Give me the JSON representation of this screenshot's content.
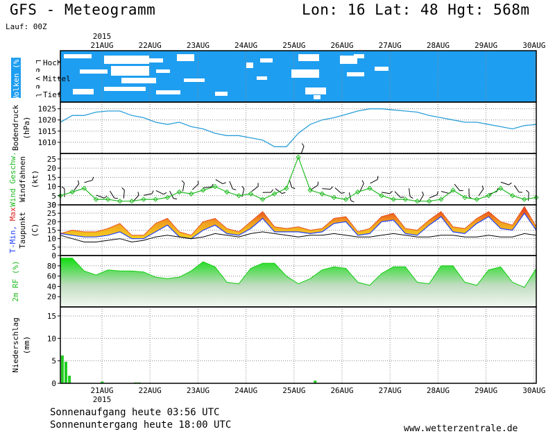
{
  "header": {
    "title": "GFS - Meteogramm",
    "location": "Lon: 16 Lat: 48 Hgt: 568m",
    "run": "Lauf: 00Z"
  },
  "footer": {
    "sunrise": "Sonnenaufgang heute 03:56 UTC",
    "sunset": "Sonnenuntergang heute 18:00 UTC",
    "site": "www.wetterzentrale.de"
  },
  "chart_data": [
    {
      "type": "heatmap",
      "id": "clouds",
      "ylabel": "Wolken (%)",
      "level_caption": "L e v e l",
      "levels": [
        "Hoch",
        "Mittel",
        "Tief"
      ],
      "x_range": [
        0,
        30
      ],
      "colors": {
        "cloud_free": "#ffffff",
        "cloud": "#1e9ef0"
      }
    },
    {
      "type": "line",
      "id": "pressure",
      "ylabel": "Bodendruck",
      "unit": "(hPa)",
      "yticks": [
        1010,
        1015,
        1020,
        1025
      ],
      "ylim": [
        1005,
        1028
      ],
      "color": "#2a9fd8",
      "x": [
        0,
        1,
        2,
        3,
        4,
        5,
        6,
        7,
        8,
        9,
        10,
        11,
        12,
        13,
        14,
        15,
        16,
        17,
        18,
        19,
        20,
        21,
        22,
        23,
        24,
        25,
        26,
        27,
        28,
        29,
        30,
        31,
        32,
        33,
        34,
        35,
        36,
        37,
        38,
        39,
        40
      ],
      "values": [
        1019,
        1022,
        1022,
        1023.5,
        1024,
        1024,
        1022,
        1021,
        1019,
        1018,
        1019,
        1017,
        1016,
        1014,
        1013,
        1013,
        1012,
        1011,
        1008,
        1008,
        1014,
        1018,
        1020,
        1021,
        1022.5,
        1024,
        1025,
        1025,
        1024.5,
        1024,
        1023.5,
        1022,
        1021,
        1020,
        1019,
        1019,
        1018,
        1017,
        1016,
        1017.5,
        1018
      ]
    },
    {
      "type": "line",
      "id": "wind",
      "ylabel": "Wind Geschw.",
      "ylabel2": "Windfahnen",
      "unit": "(kt)",
      "yticks": [
        0,
        5,
        10,
        15,
        20,
        25
      ],
      "ylim": [
        0,
        28
      ],
      "color": "#22bb22",
      "x": [
        0,
        1,
        2,
        3,
        4,
        5,
        6,
        7,
        8,
        9,
        10,
        11,
        12,
        13,
        14,
        15,
        16,
        17,
        18,
        19,
        20,
        21,
        22,
        23,
        24,
        25,
        26,
        27,
        28,
        29,
        30,
        31,
        32,
        33,
        34,
        35,
        36,
        37,
        38,
        39,
        40
      ],
      "values": [
        5,
        7,
        9,
        3,
        3,
        2,
        2,
        3,
        3,
        4,
        7,
        6,
        8,
        10,
        7,
        5,
        6,
        3,
        6,
        9,
        26,
        8,
        6,
        4,
        3,
        7,
        9,
        5,
        3,
        3,
        2,
        2,
        3,
        8,
        4,
        3,
        5,
        9,
        5,
        3,
        4
      ]
    },
    {
      "type": "area",
      "id": "temperature",
      "ylabel": "T-Min, Max",
      "ylabel2": "Taupunkt",
      "unit": "(C)",
      "yticks": [
        0,
        5,
        10,
        15,
        20,
        25,
        30
      ],
      "ylim": [
        0,
        30
      ],
      "colors": {
        "band_low": "#f0c020",
        "band_high": "#e85020",
        "tmin": "#2040ff",
        "dewpoint": "#000000"
      },
      "series": [
        {
          "name": "T-Max",
          "x": [
            0,
            1,
            2,
            3,
            4,
            5,
            6,
            7,
            8,
            9,
            10,
            11,
            12,
            13,
            14,
            15,
            16,
            17,
            18,
            19,
            20,
            21,
            22,
            23,
            24,
            25,
            26,
            27,
            28,
            29,
            30,
            31,
            32,
            33,
            34,
            35,
            36,
            37,
            38,
            39,
            40
          ],
          "values": [
            13,
            15,
            14,
            14,
            16,
            19,
            12,
            12,
            19,
            22,
            14,
            12,
            20,
            22,
            16,
            14,
            20,
            26,
            17,
            16,
            17,
            15,
            16,
            22,
            23,
            14,
            16,
            23,
            25,
            16,
            15,
            21,
            26,
            17,
            16,
            22,
            26,
            20,
            18,
            29,
            17
          ]
        },
        {
          "name": "T-Min",
          "x": [
            0,
            1,
            2,
            3,
            4,
            5,
            6,
            7,
            8,
            9,
            10,
            11,
            12,
            13,
            14,
            15,
            16,
            17,
            18,
            19,
            20,
            21,
            22,
            23,
            24,
            25,
            26,
            27,
            28,
            29,
            30,
            31,
            32,
            33,
            34,
            35,
            36,
            37,
            38,
            39,
            40
          ],
          "values": [
            13,
            12,
            11,
            11,
            12,
            14,
            10,
            10,
            14,
            18,
            11,
            10,
            15,
            18,
            13,
            12,
            16,
            22,
            14,
            14,
            14,
            13,
            14,
            19,
            20,
            12,
            13,
            20,
            21,
            13,
            12,
            18,
            23,
            14,
            13,
            19,
            23,
            16,
            15,
            25,
            15
          ]
        },
        {
          "name": "Taupunkt",
          "x": [
            0,
            1,
            2,
            3,
            4,
            5,
            6,
            7,
            8,
            9,
            10,
            11,
            12,
            13,
            14,
            15,
            16,
            17,
            18,
            19,
            20,
            21,
            22,
            23,
            24,
            25,
            26,
            27,
            28,
            29,
            30,
            31,
            32,
            33,
            34,
            35,
            36,
            37,
            38,
            39,
            40
          ],
          "values": [
            12,
            10,
            8,
            8,
            9,
            10,
            8,
            9,
            11,
            12,
            11,
            10,
            11,
            13,
            12,
            11,
            13,
            14,
            13,
            12,
            11,
            12,
            12,
            13,
            12,
            11,
            11,
            12,
            13,
            12,
            11,
            11,
            12,
            12,
            11,
            11,
            12,
            11,
            11,
            13,
            12
          ]
        }
      ]
    },
    {
      "type": "area",
      "id": "humidity",
      "ylabel": "2m RF (%)",
      "yticks": [
        20,
        40,
        60,
        80
      ],
      "ylim": [
        0,
        100
      ],
      "color": "#22cc22",
      "x": [
        0,
        1,
        2,
        3,
        4,
        5,
        6,
        7,
        8,
        9,
        10,
        11,
        12,
        13,
        14,
        15,
        16,
        17,
        18,
        19,
        20,
        21,
        22,
        23,
        24,
        25,
        26,
        27,
        28,
        29,
        30,
        31,
        32,
        33,
        34,
        35,
        36,
        37,
        38,
        39,
        40
      ],
      "values": [
        95,
        95,
        70,
        62,
        72,
        70,
        70,
        68,
        58,
        55,
        58,
        70,
        88,
        78,
        48,
        45,
        75,
        85,
        85,
        60,
        45,
        55,
        72,
        78,
        75,
        48,
        42,
        65,
        78,
        78,
        48,
        45,
        80,
        80,
        48,
        42,
        72,
        78,
        48,
        38,
        75
      ]
    },
    {
      "type": "bar",
      "id": "precipitation",
      "ylabel": "Niederschlag",
      "unit": "(mm)",
      "yticks": [
        0,
        5,
        10,
        15
      ],
      "ylim": [
        0,
        17
      ],
      "color": "#22cc22",
      "x": [
        0.05,
        0.35,
        0.65,
        3.4,
        6.2,
        6.5,
        21.3
      ],
      "values": [
        6.2,
        4.8,
        1.7,
        0.4,
        0.2,
        0.2,
        0.6
      ]
    }
  ],
  "time_axis": {
    "year": "2015",
    "labels": [
      "21AUG",
      "22AUG",
      "23AUG",
      "24AUG",
      "25AUG",
      "26AUG",
      "27AUG",
      "28AUG",
      "29AUG",
      "30AUG"
    ]
  }
}
